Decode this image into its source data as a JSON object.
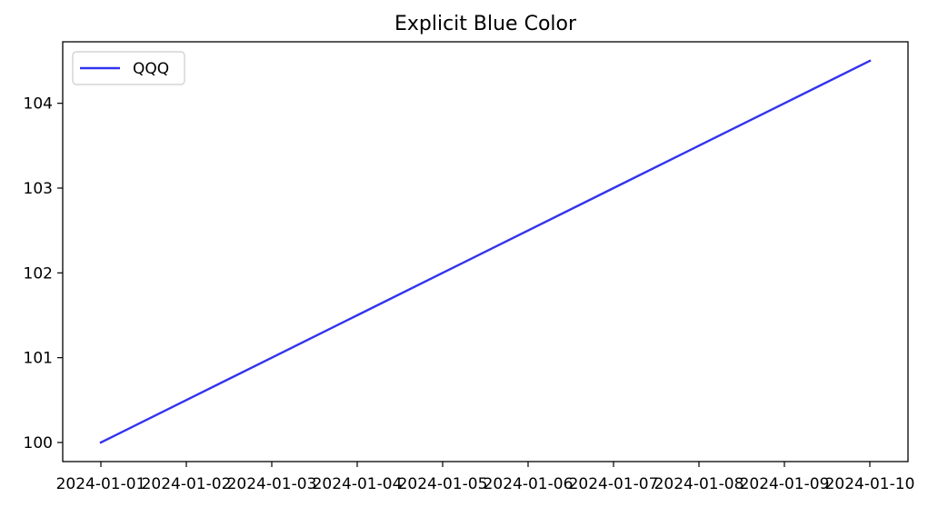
{
  "chart_data": {
    "type": "line",
    "title": "Explicit Blue Color",
    "xlabel": "",
    "ylabel": "",
    "x": [
      "2024-01-01",
      "2024-01-02",
      "2024-01-03",
      "2024-01-04",
      "2024-01-05",
      "2024-01-06",
      "2024-01-07",
      "2024-01-08",
      "2024-01-09",
      "2024-01-10"
    ],
    "x_tick_labels": [
      "2024-01-01",
      "2024-01-02",
      "2024-01-03",
      "2024-01-04",
      "2024-01-05",
      "2024-01-06",
      "2024-01-07",
      "2024-01-08",
      "2024-01-09",
      "2024-01-10"
    ],
    "y_ticks": [
      100,
      101,
      102,
      103,
      104
    ],
    "ylim": [
      99.775,
      104.725
    ],
    "grid": false,
    "legend": {
      "placement": "top-left"
    },
    "series": [
      {
        "name": "QQQ",
        "color": "#3333ee",
        "values": [
          100.0,
          100.5,
          101.0,
          101.5,
          102.0,
          102.5,
          103.0,
          103.5,
          104.0,
          104.5
        ]
      }
    ]
  }
}
